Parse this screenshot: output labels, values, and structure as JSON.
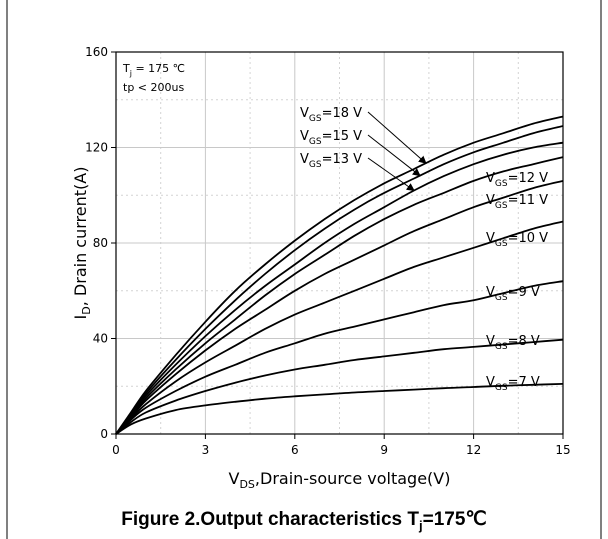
{
  "caption": {
    "main": "Figure 2.Output characteristics T",
    "sub": "j",
    "tail": "=175℃"
  },
  "chart_data": {
    "type": "line",
    "xlabel": {
      "main": "V",
      "sub": "DS",
      "tail": ",Drain-source voltage(V)"
    },
    "ylabel": {
      "main": "I",
      "sub": "D",
      "tail": ", Drain current(A)"
    },
    "xlim": [
      0,
      15
    ],
    "ylim": [
      0,
      160
    ],
    "xticks": [
      0,
      3,
      6,
      9,
      12,
      15
    ],
    "yticks": [
      0,
      40,
      80,
      120,
      160
    ],
    "grid": true,
    "conditions": [
      {
        "main": "T",
        "sub": "j",
        "tail": " = 175 ℃"
      },
      {
        "main": "tp < 200us",
        "sub": "",
        "tail": ""
      }
    ],
    "x": [
      0,
      0.5,
      1,
      2,
      3,
      4,
      5,
      6,
      7,
      8,
      9,
      10,
      11,
      12,
      13,
      14,
      15
    ],
    "series": [
      {
        "name": "VGS=18 V",
        "label": {
          "main": "V",
          "sub": "GS",
          "tail": "=18 V"
        },
        "values": [
          0,
          9,
          18,
          33,
          47,
          60,
          71,
          81,
          90,
          98,
          105,
          111,
          117,
          122,
          126,
          130,
          133
        ]
      },
      {
        "name": "VGS=15 V",
        "label": {
          "main": "V",
          "sub": "GS",
          "tail": "=15 V"
        },
        "values": [
          0,
          8.5,
          17,
          31,
          44,
          56,
          67,
          77,
          86,
          94,
          101,
          107,
          113,
          118,
          122,
          126,
          129
        ]
      },
      {
        "name": "VGS=13 V",
        "label": {
          "main": "V",
          "sub": "GS",
          "tail": "=13 V"
        },
        "values": [
          0,
          8,
          16,
          29,
          41,
          52,
          62,
          71,
          80,
          88,
          95,
          102,
          108,
          113,
          117,
          120,
          122
        ]
      },
      {
        "name": "VGS=12 V",
        "label": {
          "main": "V",
          "sub": "GS",
          "tail": "=12 V"
        },
        "values": [
          0,
          7.5,
          15,
          27,
          38,
          48,
          58,
          67,
          75,
          83,
          90,
          96,
          101,
          106,
          110,
          113,
          116
        ]
      },
      {
        "name": "VGS=11 V",
        "label": {
          "main": "V",
          "sub": "GS",
          "tail": "=11 V"
        },
        "values": [
          0,
          7,
          14,
          25,
          35,
          44,
          52,
          60,
          67,
          73,
          79,
          85,
          90,
          95,
          99,
          103,
          106
        ]
      },
      {
        "name": "VGS=10 V",
        "label": {
          "main": "V",
          "sub": "GS",
          "tail": "=10 V"
        },
        "values": [
          0,
          6.5,
          12.5,
          22,
          30,
          37,
          44,
          50,
          55,
          60,
          65,
          70,
          74,
          78,
          82,
          86,
          89
        ]
      },
      {
        "name": "VGS=9 V",
        "label": {
          "main": "V",
          "sub": "GS",
          "tail": "=9 V"
        },
        "values": [
          0,
          6,
          11,
          18,
          24,
          29,
          34,
          38,
          42,
          45,
          48,
          51,
          54,
          56,
          59,
          62,
          64
        ]
      },
      {
        "name": "VGS=8 V",
        "label": {
          "main": "V",
          "sub": "GS",
          "tail": "=8 V"
        },
        "values": [
          0,
          5,
          9,
          14,
          18,
          21.5,
          24.5,
          27,
          29,
          31,
          32.5,
          34,
          35.5,
          36.5,
          37.5,
          38.5,
          39.5
        ]
      },
      {
        "name": "VGS=7 V",
        "label": {
          "main": "V",
          "sub": "GS",
          "tail": "=7 V"
        },
        "values": [
          0,
          4,
          6.5,
          10,
          12,
          13.5,
          14.8,
          15.8,
          16.6,
          17.4,
          18,
          18.6,
          19.2,
          19.7,
          20.2,
          20.6,
          21
        ]
      }
    ]
  }
}
